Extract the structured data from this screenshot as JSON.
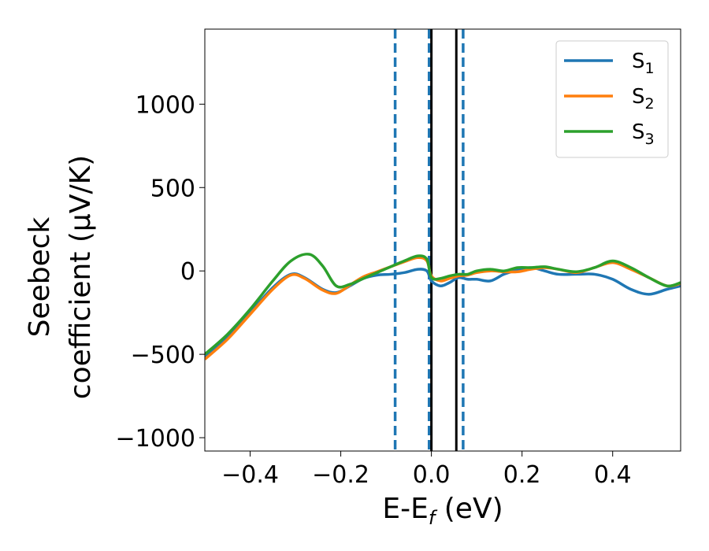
{
  "chart_data": {
    "type": "line",
    "xlabel_main": "E-E",
    "xlabel_sub": "f",
    "xlabel_tail": " (eV)",
    "ylabel_line1": "Seebeck",
    "ylabel_line2": "coefficient  (μV/K)",
    "xlim": [
      -0.5,
      0.55
    ],
    "ylim": [
      -1080,
      1450
    ],
    "xticks": [
      -0.4,
      -0.2,
      0.0,
      0.2,
      0.4
    ],
    "xtick_labels": [
      "−0.4",
      "−0.2",
      "0.0",
      "0.2",
      "0.4"
    ],
    "yticks": [
      -1000,
      -500,
      0,
      500,
      1000
    ],
    "ytick_labels": [
      "−1000",
      "−500",
      "0",
      "500",
      "1000"
    ],
    "grid": false,
    "legend_position": "top-right",
    "series": [
      {
        "name": "S",
        "name_sub": "1",
        "color": "#1f77b4",
        "x": [
          -0.5,
          -0.45,
          -0.4,
          -0.35,
          -0.31,
          -0.28,
          -0.24,
          -0.21,
          -0.18,
          -0.15,
          -0.12,
          -0.09,
          -0.06,
          -0.03,
          -0.01,
          0.0,
          0.02,
          0.04,
          0.06,
          0.08,
          0.1,
          0.13,
          0.16,
          0.19,
          0.22,
          0.25,
          0.28,
          0.32,
          0.36,
          0.4,
          0.44,
          0.48,
          0.52,
          0.55
        ],
        "y": [
          -520,
          -400,
          -250,
          -100,
          -20,
          -40,
          -110,
          -130,
          -90,
          -45,
          -25,
          -20,
          -10,
          10,
          0,
          -60,
          -90,
          -70,
          -40,
          -50,
          -50,
          -60,
          -20,
          5,
          20,
          0,
          -20,
          -20,
          -20,
          -50,
          -110,
          -140,
          -110,
          -90
        ]
      },
      {
        "name": "S",
        "name_sub": "2",
        "color": "#ff7f0e",
        "x": [
          -0.5,
          -0.45,
          -0.4,
          -0.35,
          -0.31,
          -0.28,
          -0.24,
          -0.21,
          -0.18,
          -0.15,
          -0.12,
          -0.09,
          -0.06,
          -0.03,
          -0.01,
          0.0,
          0.02,
          0.04,
          0.06,
          0.08,
          0.1,
          0.13,
          0.16,
          0.19,
          0.22,
          0.25,
          0.28,
          0.32,
          0.36,
          0.4,
          0.44,
          0.48,
          0.52,
          0.55
        ],
        "y": [
          -530,
          -410,
          -260,
          -110,
          -25,
          -45,
          -115,
          -135,
          -85,
          -35,
          -5,
          25,
          55,
          80,
          60,
          -30,
          -60,
          -45,
          -30,
          -25,
          -10,
          0,
          -5,
          -5,
          10,
          20,
          10,
          -10,
          20,
          50,
          10,
          -40,
          -90,
          -75
        ]
      },
      {
        "name": "S",
        "name_sub": "3",
        "color": "#2ca02c",
        "x": [
          -0.5,
          -0.45,
          -0.4,
          -0.35,
          -0.31,
          -0.27,
          -0.24,
          -0.21,
          -0.18,
          -0.15,
          -0.12,
          -0.09,
          -0.06,
          -0.03,
          -0.01,
          0.0,
          0.02,
          0.04,
          0.06,
          0.08,
          0.1,
          0.13,
          0.16,
          0.19,
          0.22,
          0.25,
          0.28,
          0.32,
          0.36,
          0.4,
          0.44,
          0.48,
          0.52,
          0.55
        ],
        "y": [
          -500,
          -380,
          -230,
          -60,
          60,
          100,
          30,
          -90,
          -80,
          -45,
          -10,
          25,
          60,
          90,
          70,
          -40,
          -45,
          -30,
          -20,
          -20,
          0,
          10,
          0,
          20,
          20,
          25,
          10,
          -5,
          20,
          60,
          20,
          -40,
          -90,
          -70
        ]
      }
    ],
    "vlines": [
      {
        "x": -0.08,
        "color": "#1f77b4",
        "style": "dashed"
      },
      {
        "x": -0.005,
        "color": "#1f77b4",
        "style": "dashed"
      },
      {
        "x": 0.07,
        "color": "#1f77b4",
        "style": "dashed"
      },
      {
        "x": 0.0,
        "color": "#000000",
        "style": "solid"
      },
      {
        "x": 0.055,
        "color": "#000000",
        "style": "solid"
      }
    ]
  }
}
